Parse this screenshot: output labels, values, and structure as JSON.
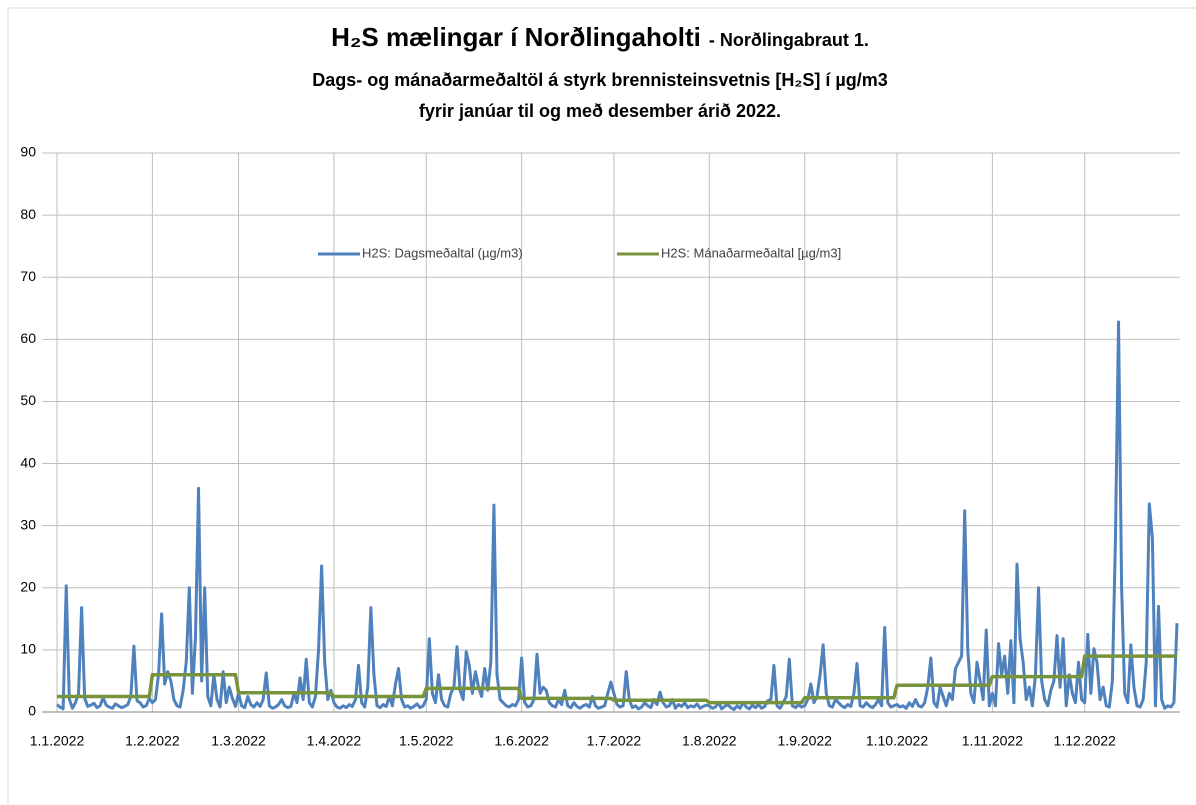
{
  "chart_data": {
    "type": "line",
    "title": "H₂S mælingar í Norðlingaholti",
    "title_suffix": "- Norðlingabraut 1.",
    "subtitle": [
      "Dags- og mánaðarmeðaltöl á styrk brennisteinsvetnis [H₂S] í µg/m3",
      "fyrir janúar til og með desember árið 2022."
    ],
    "ylim": [
      0,
      90
    ],
    "yticks": [
      0,
      10,
      20,
      30,
      40,
      50,
      60,
      70,
      80,
      90
    ],
    "grid": true,
    "legend": "top",
    "categories": [
      "1.1.2022",
      null,
      null,
      null,
      null,
      null,
      null,
      null,
      null,
      null,
      null,
      null,
      null,
      null,
      null,
      null,
      null,
      null,
      null,
      null,
      null,
      null,
      null,
      null,
      null,
      null,
      null,
      null,
      null,
      null,
      null,
      "1.2.2022",
      null,
      null,
      null,
      null,
      null,
      null,
      null,
      null,
      null,
      null,
      null,
      null,
      null,
      null,
      null,
      null,
      null,
      null,
      null,
      null,
      null,
      null,
      null,
      null,
      null,
      null,
      null,
      "1.3.2022",
      null,
      null,
      null,
      null,
      null,
      null,
      null,
      null,
      null,
      null,
      null,
      null,
      null,
      null,
      null,
      null,
      null,
      null,
      null,
      null,
      null,
      null,
      null,
      null,
      null,
      null,
      null,
      null,
      null,
      null,
      "1.4.2022",
      null,
      null,
      null,
      null,
      null,
      null,
      null,
      null,
      null,
      null,
      null,
      null,
      null,
      null,
      null,
      null,
      null,
      null,
      null,
      null,
      null,
      null,
      null,
      null,
      null,
      null,
      null,
      null,
      null,
      "1.5.2022",
      null,
      null,
      null,
      null,
      null,
      null,
      null,
      null,
      null,
      null,
      null,
      null,
      null,
      null,
      null,
      null,
      null,
      null,
      null,
      null,
      null,
      null,
      null,
      null,
      null,
      null,
      null,
      null,
      null,
      null,
      "1.6.2022",
      null,
      null,
      null,
      null,
      null,
      null,
      null,
      null,
      null,
      null,
      null,
      null,
      null,
      null,
      null,
      null,
      null,
      null,
      null,
      null,
      null,
      null,
      null,
      null,
      null,
      null,
      null,
      null,
      null,
      "1.7.2022",
      null,
      null,
      null,
      null,
      null,
      null,
      null,
      null,
      null,
      null,
      null,
      null,
      null,
      null,
      null,
      null,
      null,
      null,
      null,
      null,
      null,
      null,
      null,
      null,
      null,
      null,
      null,
      null,
      null,
      null,
      "1.8.2022",
      null,
      null,
      null,
      null,
      null,
      null,
      null,
      null,
      null,
      null,
      null,
      null,
      null,
      null,
      null,
      null,
      null,
      null,
      null,
      null,
      null,
      null,
      null,
      null,
      null,
      null,
      null,
      null,
      null,
      null,
      "1.9.2022",
      null,
      null,
      null,
      null,
      null,
      null,
      null,
      null,
      null,
      null,
      null,
      null,
      null,
      null,
      null,
      null,
      null,
      null,
      null,
      null,
      null,
      null,
      null,
      null,
      null,
      null,
      null,
      null,
      null,
      "1.10.2022",
      null,
      null,
      null,
      null,
      null,
      null,
      null,
      null,
      null,
      null,
      null,
      null,
      null,
      null,
      null,
      null,
      null,
      null,
      null,
      null,
      null,
      null,
      null,
      null,
      null,
      null,
      null,
      null,
      null,
      null,
      "1.11.2022",
      null,
      null,
      null,
      null,
      null,
      null,
      null,
      null,
      null,
      null,
      null,
      null,
      null,
      null,
      null,
      null,
      null,
      null,
      null,
      null,
      null,
      null,
      null,
      null,
      null,
      null,
      null,
      null,
      null,
      "1.12.2022",
      null,
      null,
      null,
      null,
      null,
      null,
      null,
      null,
      null,
      null,
      null,
      null,
      null,
      null,
      null,
      null,
      null,
      null,
      null,
      null,
      null,
      null,
      null,
      null,
      null,
      null,
      null,
      null,
      null,
      null
    ],
    "series": [
      {
        "name": "H2S: Dagsmeðaltal (µg/m3)",
        "color": "#4f81bd",
        "values": [
          1.2,
          0.8,
          0.5,
          20.3,
          2.1,
          0.6,
          1.5,
          3.0,
          16.8,
          2.2,
          0.9,
          1.1,
          1.4,
          0.7,
          1.0,
          2.3,
          1.1,
          0.8,
          0.6,
          1.3,
          1.0,
          0.7,
          0.9,
          1.2,
          2.5,
          10.6,
          1.8,
          1.5,
          0.8,
          1.0,
          2.2,
          1.5,
          2.0,
          6.0,
          15.8,
          4.5,
          6.5,
          5.0,
          2.0,
          1.0,
          0.8,
          3.5,
          8.0,
          20.0,
          3.0,
          12.0,
          36.0,
          5.0,
          20.0,
          2.5,
          1.0,
          6.0,
          2.0,
          0.8,
          6.5,
          1.5,
          4.0,
          2.2,
          0.9,
          3.0,
          1.0,
          0.7,
          2.5,
          1.2,
          0.8,
          1.5,
          0.9,
          2.0,
          6.3,
          1.0,
          0.6,
          0.8,
          1.2,
          2.0,
          1.0,
          0.7,
          0.9,
          3.0,
          1.5,
          5.5,
          2.0,
          8.5,
          1.5,
          0.8,
          2.5,
          10.0,
          23.5,
          8.0,
          2.0,
          3.5,
          1.5,
          0.8,
          0.6,
          1.0,
          0.7,
          1.2,
          0.9,
          2.0,
          7.5,
          1.5,
          0.8,
          4.0,
          16.8,
          6.0,
          1.0,
          0.7,
          1.2,
          0.9,
          2.5,
          1.0,
          4.5,
          7.0,
          2.0,
          0.8,
          1.0,
          0.6,
          0.9,
          1.3,
          0.7,
          1.0,
          2.0,
          11.8,
          3.0,
          1.5,
          6.0,
          2.0,
          1.0,
          0.8,
          3.0,
          4.0,
          10.5,
          3.5,
          2.0,
          9.7,
          7.5,
          3.0,
          6.5,
          4.0,
          2.5,
          7.0,
          3.5,
          8.0,
          33.3,
          6.0,
          2.0,
          1.5,
          1.0,
          0.8,
          1.2,
          1.0,
          2.0,
          8.7,
          1.5,
          0.8,
          1.0,
          2.0,
          9.3,
          3.0,
          4.0,
          3.5,
          1.5,
          1.0,
          0.8,
          2.0,
          1.2,
          3.5,
          1.0,
          0.7,
          1.5,
          0.9,
          0.6,
          1.0,
          1.2,
          0.8,
          2.5,
          1.0,
          0.6,
          0.8,
          1.0,
          3.0,
          4.8,
          3.0,
          1.2,
          0.8,
          1.0,
          6.5,
          2.0,
          0.7,
          1.0,
          0.5,
          0.8,
          1.5,
          1.0,
          0.7,
          2.0,
          1.2,
          3.2,
          1.5,
          0.8,
          1.0,
          2.0,
          0.6,
          1.2,
          0.9,
          1.5,
          0.7,
          1.0,
          0.8,
          1.3,
          0.6,
          0.9,
          1.1,
          1.0,
          0.6,
          0.8,
          1.5,
          0.5,
          0.9,
          1.2,
          0.7,
          0.4,
          1.0,
          0.6,
          1.5,
          0.8,
          0.5,
          1.1,
          0.7,
          1.2,
          0.6,
          0.9,
          1.8,
          2.0,
          7.5,
          1.0,
          0.6,
          1.5,
          2.5,
          8.5,
          1.0,
          0.7,
          1.2,
          0.8,
          1.0,
          2.0,
          4.5,
          1.5,
          2.5,
          6.0,
          10.8,
          3.0,
          1.0,
          0.8,
          2.0,
          1.5,
          1.0,
          0.7,
          1.2,
          0.9,
          3.0,
          7.8,
          1.0,
          0.8,
          1.5,
          1.0,
          0.7,
          1.2,
          2.0,
          1.0,
          13.6,
          1.5,
          0.8,
          1.0,
          1.2,
          0.8,
          1.0,
          0.6,
          1.5,
          0.9,
          2.0,
          1.0,
          0.8,
          1.5,
          4.0,
          8.7,
          1.5,
          0.8,
          4.0,
          2.5,
          1.0,
          3.0,
          2.0,
          7.0,
          8.0,
          9.0,
          32.4,
          10.0,
          3.0,
          1.5,
          8.0,
          5.0,
          2.0,
          13.2,
          1.0,
          3.0,
          1.0,
          11.0,
          6.0,
          9.0,
          3.0,
          11.5,
          1.5,
          23.8,
          11.8,
          8.0,
          2.0,
          4.0,
          1.0,
          6.0,
          20.0,
          5.0,
          2.0,
          1.0,
          3.5,
          5.0,
          12.3,
          4.0,
          11.8,
          1.0,
          6.0,
          3.0,
          1.5,
          8.0,
          2.0,
          1.5,
          12.5,
          3.0,
          10.2,
          8.0,
          2.0,
          4.0,
          1.0,
          0.8,
          5.0,
          28.0,
          62.8,
          20.0,
          3.0,
          1.5,
          10.8,
          4.0,
          1.0,
          0.8,
          2.0,
          8.0,
          33.5,
          28.0,
          1.0,
          17.0,
          2.0,
          0.6,
          1.0,
          0.8,
          1.5,
          14.3
        ]
      },
      {
        "name": "H2S: Mánaðarmeðaltal [µg/m3]",
        "color": "#77933c",
        "values": [
          2.5,
          2.5,
          2.5,
          2.5,
          2.5,
          2.5,
          2.5,
          2.5,
          2.5,
          2.5,
          2.5,
          2.5,
          2.5,
          2.5,
          2.5,
          2.5,
          2.5,
          2.5,
          2.5,
          2.5,
          2.5,
          2.5,
          2.5,
          2.5,
          2.5,
          2.5,
          2.5,
          2.5,
          2.5,
          2.5,
          2.5,
          6,
          6,
          6,
          6,
          6,
          6,
          6,
          6,
          6,
          6,
          6,
          6,
          6,
          6,
          6,
          6,
          6,
          6,
          6,
          6,
          6,
          6,
          6,
          6,
          6,
          6,
          6,
          6,
          3.1,
          3.1,
          3.1,
          3.1,
          3.1,
          3.1,
          3.1,
          3.1,
          3.1,
          3.1,
          3.1,
          3.1,
          3.1,
          3.1,
          3.1,
          3.1,
          3.1,
          3.1,
          3.1,
          3.1,
          3.1,
          3.1,
          3.1,
          3.1,
          3.1,
          3.1,
          3.1,
          3.1,
          3.1,
          3.1,
          3.1,
          2.5,
          2.5,
          2.5,
          2.5,
          2.5,
          2.5,
          2.5,
          2.5,
          2.5,
          2.5,
          2.5,
          2.5,
          2.5,
          2.5,
          2.5,
          2.5,
          2.5,
          2.5,
          2.5,
          2.5,
          2.5,
          2.5,
          2.5,
          2.5,
          2.5,
          2.5,
          2.5,
          2.5,
          2.5,
          2.5,
          3.8,
          3.8,
          3.8,
          3.8,
          3.8,
          3.8,
          3.8,
          3.8,
          3.8,
          3.8,
          3.8,
          3.8,
          3.8,
          3.8,
          3.8,
          3.8,
          3.8,
          3.8,
          3.8,
          3.8,
          3.8,
          3.8,
          3.8,
          3.8,
          3.8,
          3.8,
          3.8,
          3.8,
          3.8,
          3.8,
          3.8,
          2.2,
          2.2,
          2.2,
          2.2,
          2.2,
          2.2,
          2.2,
          2.2,
          2.2,
          2.2,
          2.2,
          2.2,
          2.2,
          2.2,
          2.2,
          2.2,
          2.2,
          2.2,
          2.2,
          2.2,
          2.2,
          2.2,
          2.2,
          2.2,
          2.2,
          2.2,
          2.2,
          2.2,
          2.2,
          2.2,
          1.9,
          1.9,
          1.9,
          1.9,
          1.9,
          1.9,
          1.9,
          1.9,
          1.9,
          1.9,
          1.9,
          1.9,
          1.9,
          1.9,
          1.9,
          1.9,
          1.9,
          1.9,
          1.9,
          1.9,
          1.9,
          1.9,
          1.9,
          1.9,
          1.9,
          1.9,
          1.9,
          1.9,
          1.9,
          1.9,
          1.9,
          1.5,
          1.5,
          1.5,
          1.5,
          1.5,
          1.5,
          1.5,
          1.5,
          1.5,
          1.5,
          1.5,
          1.5,
          1.5,
          1.5,
          1.5,
          1.5,
          1.5,
          1.5,
          1.5,
          1.5,
          1.5,
          1.5,
          1.5,
          1.5,
          1.5,
          1.5,
          1.5,
          1.5,
          1.5,
          1.5,
          1.5,
          2.3,
          2.3,
          2.3,
          2.3,
          2.3,
          2.3,
          2.3,
          2.3,
          2.3,
          2.3,
          2.3,
          2.3,
          2.3,
          2.3,
          2.3,
          2.3,
          2.3,
          2.3,
          2.3,
          2.3,
          2.3,
          2.3,
          2.3,
          2.3,
          2.3,
          2.3,
          2.3,
          2.3,
          2.3,
          2.3,
          4.3,
          4.3,
          4.3,
          4.3,
          4.3,
          4.3,
          4.3,
          4.3,
          4.3,
          4.3,
          4.3,
          4.3,
          4.3,
          4.3,
          4.3,
          4.3,
          4.3,
          4.3,
          4.3,
          4.3,
          4.3,
          4.3,
          4.3,
          4.3,
          4.3,
          4.3,
          4.3,
          4.3,
          4.3,
          4.3,
          4.3,
          5.7,
          5.7,
          5.7,
          5.7,
          5.7,
          5.7,
          5.7,
          5.7,
          5.7,
          5.7,
          5.7,
          5.7,
          5.7,
          5.7,
          5.7,
          5.7,
          5.7,
          5.7,
          5.7,
          5.7,
          5.7,
          5.7,
          5.7,
          5.7,
          5.7,
          5.7,
          5.7,
          5.7,
          5.7,
          5.7,
          9,
          9,
          9,
          9,
          9,
          9,
          9,
          9,
          9,
          9,
          9,
          9,
          9,
          9,
          9,
          9,
          9,
          9,
          9,
          9,
          9,
          9,
          9,
          9,
          9,
          9,
          9,
          9,
          9,
          9,
          9
        ]
      }
    ]
  }
}
